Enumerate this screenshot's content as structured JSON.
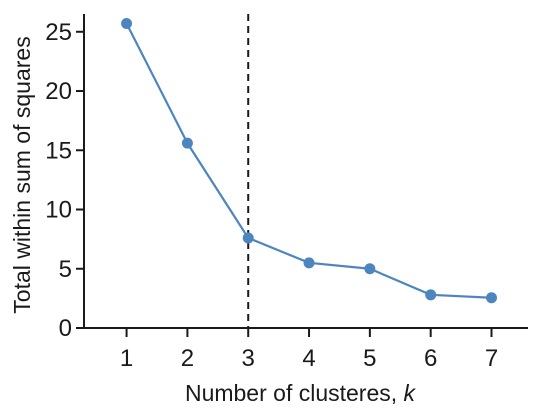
{
  "chart_data": {
    "type": "line",
    "title": "",
    "xlabel": "Number of clusteres, ",
    "xlabel_italic": "k",
    "ylabel": "Total within sum of squares",
    "x": [
      1,
      2,
      3,
      4,
      5,
      6,
      7
    ],
    "series": [
      {
        "values": [
          25.7,
          15.6,
          7.6,
          5.5,
          5.0,
          2.8,
          2.55
        ]
      }
    ],
    "xlim": [
      0.3,
      7.6
    ],
    "ylim": [
      0,
      26.5
    ],
    "xticks": [
      1,
      2,
      3,
      4,
      5,
      6,
      7
    ],
    "yticks": [
      0,
      5,
      10,
      15,
      20,
      25
    ],
    "reference_line_x": 3,
    "grid": false,
    "series_color": "#4d86bf",
    "axis_color": "#1a1a1a"
  }
}
